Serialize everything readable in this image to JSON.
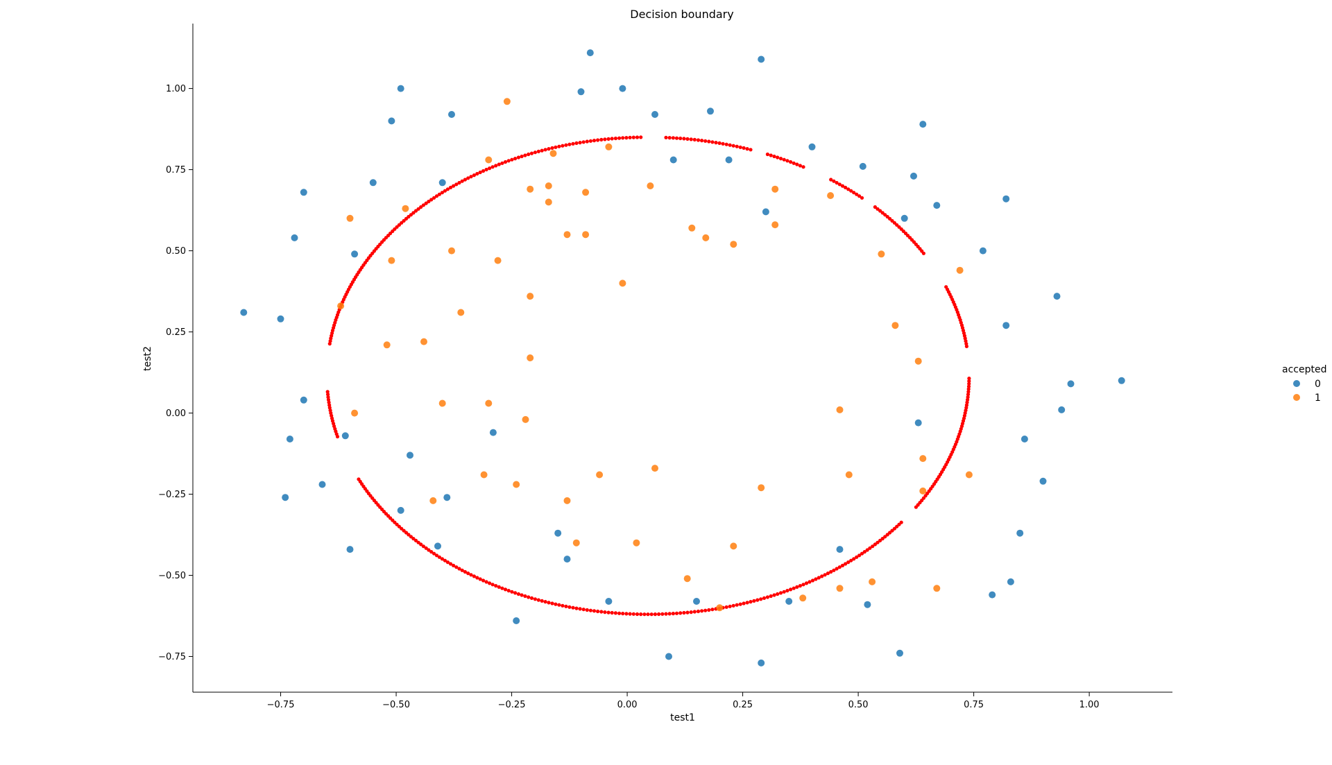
{
  "chart_data": {
    "type": "scatter",
    "title": "Decision boundary",
    "xlabel": "test1",
    "ylabel": "test2",
    "xlim": [
      -0.94,
      1.18
    ],
    "ylim": [
      -0.86,
      1.2
    ],
    "xticks": [
      -0.75,
      -0.5,
      -0.25,
      0.0,
      0.25,
      0.5,
      0.75,
      1.0
    ],
    "xtick_labels": [
      "−0.75",
      "−0.50",
      "−0.25",
      "0.00",
      "0.25",
      "0.50",
      "0.75",
      "1.00"
    ],
    "yticks": [
      -0.75,
      -0.5,
      -0.25,
      0.0,
      0.25,
      0.5,
      0.75,
      1.0
    ],
    "ytick_labels": [
      "−0.75",
      "−0.50",
      "−0.25",
      "0.00",
      "0.25",
      "0.50",
      "0.75",
      "1.00"
    ],
    "grid": false,
    "legend": {
      "title": "accepted",
      "placement": "right",
      "entries": [
        "0",
        "1"
      ]
    },
    "series": [
      {
        "name": "0",
        "color": "#1f77b4",
        "points": [
          [
            -0.08,
            1.11
          ],
          [
            0.29,
            1.09
          ],
          [
            -0.49,
            1.0
          ],
          [
            -0.1,
            0.99
          ],
          [
            -0.01,
            1.0
          ],
          [
            -0.51,
            0.9
          ],
          [
            -0.38,
            0.92
          ],
          [
            0.06,
            0.92
          ],
          [
            0.18,
            0.93
          ],
          [
            0.64,
            0.89
          ],
          [
            0.4,
            0.82
          ],
          [
            0.1,
            0.78
          ],
          [
            0.22,
            0.78
          ],
          [
            0.51,
            0.76
          ],
          [
            0.62,
            0.73
          ],
          [
            -0.7,
            0.68
          ],
          [
            -0.55,
            0.71
          ],
          [
            -0.4,
            0.71
          ],
          [
            0.3,
            0.62
          ],
          [
            0.6,
            0.6
          ],
          [
            0.67,
            0.64
          ],
          [
            0.82,
            0.66
          ],
          [
            -0.72,
            0.54
          ],
          [
            -0.59,
            0.49
          ],
          [
            0.77,
            0.5
          ],
          [
            0.93,
            0.36
          ],
          [
            -0.83,
            0.31
          ],
          [
            -0.75,
            0.29
          ],
          [
            0.82,
            0.27
          ],
          [
            1.07,
            0.1
          ],
          [
            0.96,
            0.09
          ],
          [
            0.94,
            0.01
          ],
          [
            -0.7,
            0.04
          ],
          [
            -0.61,
            -0.07
          ],
          [
            -0.73,
            -0.08
          ],
          [
            -0.29,
            -0.06
          ],
          [
            -0.47,
            -0.13
          ],
          [
            0.63,
            -0.03
          ],
          [
            0.86,
            -0.08
          ],
          [
            0.9,
            -0.21
          ],
          [
            -0.74,
            -0.26
          ],
          [
            -0.66,
            -0.22
          ],
          [
            -0.39,
            -0.26
          ],
          [
            -0.49,
            -0.3
          ],
          [
            -0.15,
            -0.37
          ],
          [
            -0.6,
            -0.42
          ],
          [
            -0.41,
            -0.41
          ],
          [
            -0.13,
            -0.45
          ],
          [
            0.46,
            -0.42
          ],
          [
            0.85,
            -0.37
          ],
          [
            -0.04,
            -0.58
          ],
          [
            0.15,
            -0.58
          ],
          [
            0.35,
            -0.58
          ],
          [
            0.52,
            -0.59
          ],
          [
            0.79,
            -0.56
          ],
          [
            0.83,
            -0.52
          ],
          [
            -0.24,
            -0.64
          ],
          [
            0.09,
            -0.75
          ],
          [
            0.29,
            -0.77
          ],
          [
            0.59,
            -0.74
          ]
        ]
      },
      {
        "name": "1",
        "color": "#ff7f0e",
        "points": [
          [
            -0.26,
            0.96
          ],
          [
            -0.3,
            0.78
          ],
          [
            -0.16,
            0.8
          ],
          [
            -0.04,
            0.82
          ],
          [
            -0.21,
            0.69
          ],
          [
            -0.17,
            0.7
          ],
          [
            -0.09,
            0.68
          ],
          [
            0.05,
            0.7
          ],
          [
            0.32,
            0.69
          ],
          [
            0.44,
            0.67
          ],
          [
            -0.6,
            0.6
          ],
          [
            -0.48,
            0.63
          ],
          [
            -0.17,
            0.65
          ],
          [
            -0.13,
            0.55
          ],
          [
            -0.09,
            0.55
          ],
          [
            0.14,
            0.57
          ],
          [
            0.17,
            0.54
          ],
          [
            0.23,
            0.52
          ],
          [
            0.32,
            0.58
          ],
          [
            -0.51,
            0.47
          ],
          [
            -0.38,
            0.5
          ],
          [
            -0.28,
            0.47
          ],
          [
            0.55,
            0.49
          ],
          [
            0.72,
            0.44
          ],
          [
            -0.01,
            0.4
          ],
          [
            -0.21,
            0.36
          ],
          [
            -0.62,
            0.33
          ],
          [
            -0.36,
            0.31
          ],
          [
            0.58,
            0.27
          ],
          [
            -0.52,
            0.21
          ],
          [
            -0.44,
            0.22
          ],
          [
            -0.21,
            0.17
          ],
          [
            0.63,
            0.16
          ],
          [
            -0.59,
            0.0
          ],
          [
            -0.4,
            0.03
          ],
          [
            -0.3,
            0.03
          ],
          [
            -0.22,
            -0.02
          ],
          [
            0.46,
            0.01
          ],
          [
            -0.31,
            -0.19
          ],
          [
            -0.24,
            -0.22
          ],
          [
            -0.06,
            -0.19
          ],
          [
            0.06,
            -0.17
          ],
          [
            0.29,
            -0.23
          ],
          [
            0.48,
            -0.19
          ],
          [
            0.64,
            -0.14
          ],
          [
            0.74,
            -0.19
          ],
          [
            -0.42,
            -0.27
          ],
          [
            -0.13,
            -0.27
          ],
          [
            0.64,
            -0.24
          ],
          [
            -0.11,
            -0.4
          ],
          [
            0.02,
            -0.4
          ],
          [
            0.23,
            -0.41
          ],
          [
            0.13,
            -0.51
          ],
          [
            0.46,
            -0.54
          ],
          [
            0.53,
            -0.52
          ],
          [
            0.67,
            -0.54
          ],
          [
            0.38,
            -0.57
          ],
          [
            0.2,
            -0.6
          ]
        ]
      }
    ],
    "boundary": {
      "color": "#ff0000",
      "center": [
        0.045,
        0.115
      ],
      "radius_x": 0.695,
      "radius_y": 0.735,
      "gaps": [
        [
          0.0,
          0.12
        ],
        [
          0.39,
          0.53
        ],
        [
          0.79,
          0.84
        ],
        [
          0.97,
          1.06
        ],
        [
          1.19,
          1.24
        ],
        [
          1.52,
          1.59
        ],
        [
          3.01,
          3.2
        ],
        [
          3.4,
          3.58
        ],
        [
          5.63,
          5.69
        ]
      ]
    }
  }
}
